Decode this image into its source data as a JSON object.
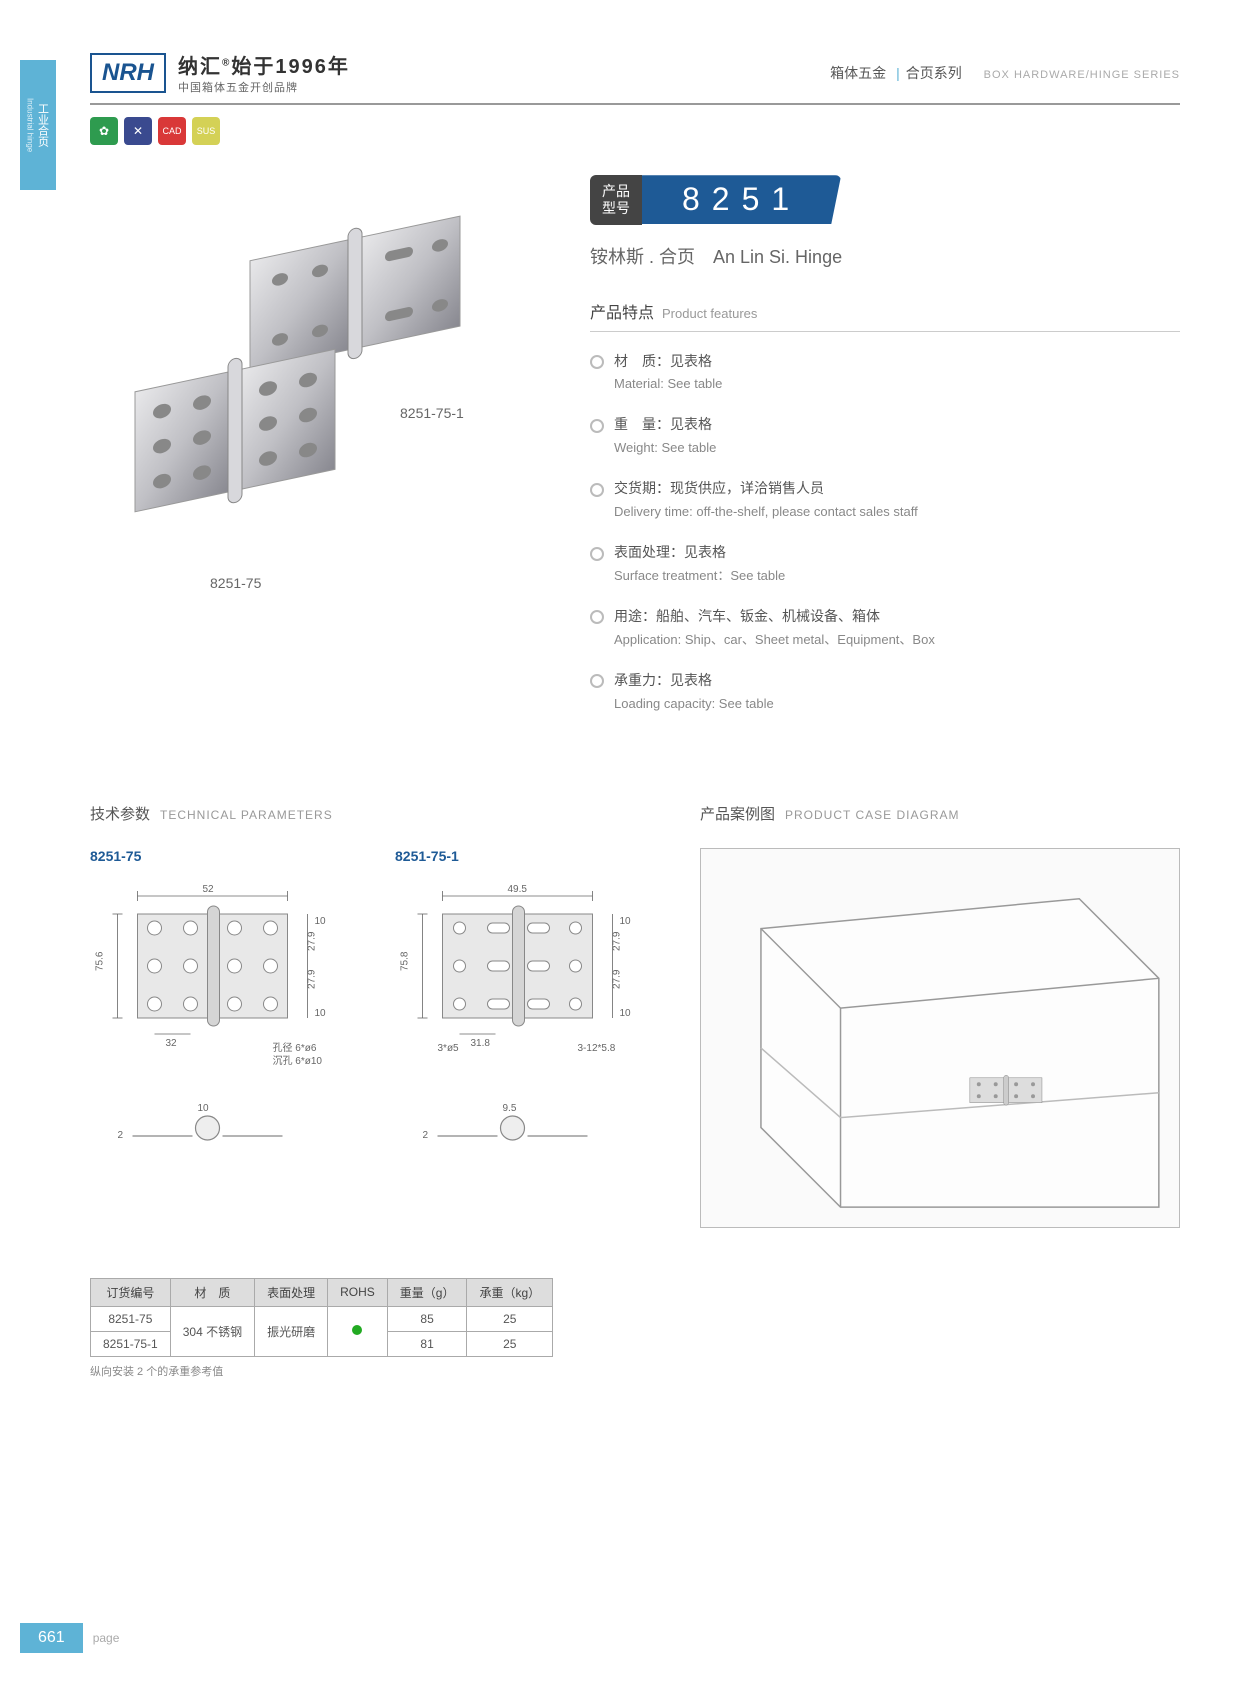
{
  "sideTab": {
    "cn": "工业合页",
    "en": "Industrial hinge"
  },
  "logo": {
    "brand": "NRH",
    "cn": "纳汇",
    "reg": "®",
    "tagline": "始于1996年",
    "sub": "中国箱体五金开创品牌"
  },
  "headerRight": {
    "cn1": "箱体五金",
    "cn2": "合页系列",
    "en": "BOX HARDWARE/HINGE SERIES"
  },
  "badges": [
    {
      "bg": "#2e9b4f",
      "icon": "✿"
    },
    {
      "bg": "#3a4a8f",
      "icon": "✕"
    },
    {
      "bg": "#d93838",
      "icon": "CAD"
    },
    {
      "bg": "#d4d156",
      "icon": "SUS"
    }
  ],
  "images": {
    "label1": "8251-75-1",
    "label2": "8251-75"
  },
  "model": {
    "label": "产品\n型号",
    "number": "8251"
  },
  "productName": {
    "cn": "铵林斯 . 合页",
    "en": "An Lin Si. Hinge"
  },
  "featuresTitle": {
    "cn": "产品特点",
    "en": "Product features"
  },
  "features": [
    {
      "cn": "材　质：见表格",
      "en": "Material: See table"
    },
    {
      "cn": "重　量：见表格",
      "en": "Weight: See table"
    },
    {
      "cn": "交货期：现货供应，详洽销售人员",
      "en": "Delivery time: off-the-shelf, please contact sales staff"
    },
    {
      "cn": "表面处理：见表格",
      "en": "Surface treatment：See table"
    },
    {
      "cn": "用途：船舶、汽车、钣金、机械设备、箱体",
      "en": "Application: Ship、car、Sheet metal、Equipment、Box"
    },
    {
      "cn": "承重力：见表格",
      "en": "Loading capacity: See table"
    }
  ],
  "techTitle": {
    "cn": "技术参数",
    "en": "TECHNICAL PARAMETERS"
  },
  "caseTitle": {
    "cn": "产品案例图",
    "en": "PRODUCT CASE DIAGRAM"
  },
  "diagrams": [
    {
      "label": "8251-75",
      "dims": {
        "w": "52",
        "h": "75.6",
        "h2": "27.9",
        "h3": "10",
        "w2": "32",
        "note1": "孔径 6*ø6",
        "note2": "沉孔 6*ø10",
        "side": "10",
        "thick": "2"
      }
    },
    {
      "label": "8251-75-1",
      "dims": {
        "w": "49.5",
        "h": "75.8",
        "h2": "27.9",
        "h3": "10",
        "w2": "31.8",
        "hole": "3*ø5",
        "slot": "3-12*5.8",
        "side": "9.5",
        "thick": "2"
      }
    }
  ],
  "table": {
    "headers": [
      "订货编号",
      "材　质",
      "表面处理",
      "ROHS",
      "重量（g）",
      "承重（kg）"
    ],
    "rows": [
      [
        "8251-75",
        "304 不锈钢",
        "振光研磨",
        "dot",
        "85",
        "25"
      ],
      [
        "8251-75-1",
        "",
        "",
        "",
        "81",
        "25"
      ]
    ],
    "note": "纵向安装 2 个的承重参考值"
  },
  "pageNum": "661",
  "pageLabel": "page",
  "colors": {
    "accent": "#5eb3d6",
    "blue": "#1e5a96",
    "dark": "#444"
  }
}
